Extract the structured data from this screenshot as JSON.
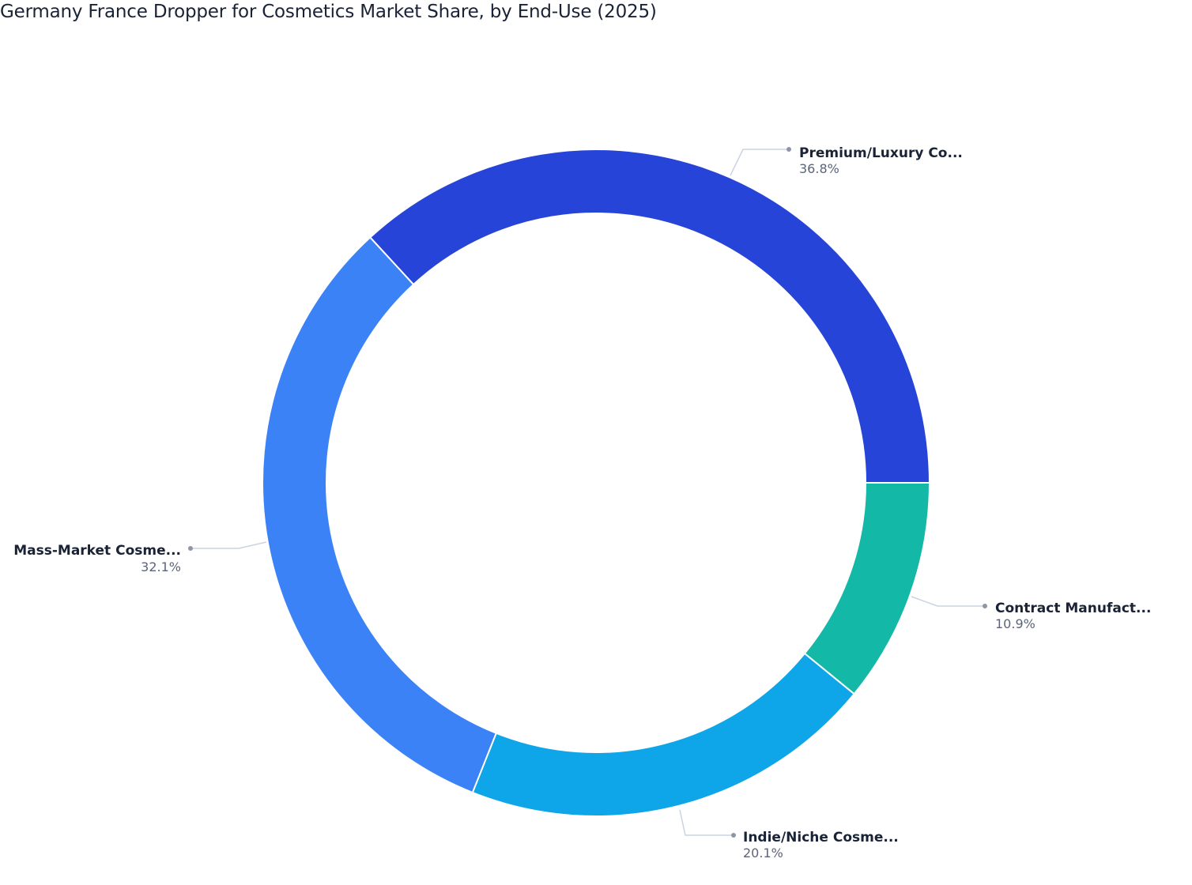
{
  "title": "Germany France Dropper for Cosmetics Market Share, by End-Use (2025)",
  "chart_data": {
    "type": "pie",
    "subtype": "donut",
    "title": "Germany France Dropper for Cosmetics Market Share, by End-Use (2025)",
    "categories": [
      "Premium/Luxury Co...",
      "Mass-Market Cosme...",
      "Indie/Niche Cosme...",
      "Contract Manufact..."
    ],
    "values": [
      36.8,
      32.1,
      20.1,
      10.9
    ],
    "unit": "%",
    "colors": [
      "#2744d8",
      "#3b82f6",
      "#0ea5e9",
      "#14b8a6"
    ],
    "legend": "none (outside labels with leader lines)",
    "start_angle_deg": 0,
    "direction": "counterclockwise"
  },
  "labels": [
    {
      "name": "Premium/Luxury Co...",
      "pct": "36.8%"
    },
    {
      "name": "Mass-Market Cosme...",
      "pct": "32.1%"
    },
    {
      "name": "Indie/Niche Cosme...",
      "pct": "20.1%"
    },
    {
      "name": "Contract Manufact...",
      "pct": "10.9%"
    }
  ]
}
